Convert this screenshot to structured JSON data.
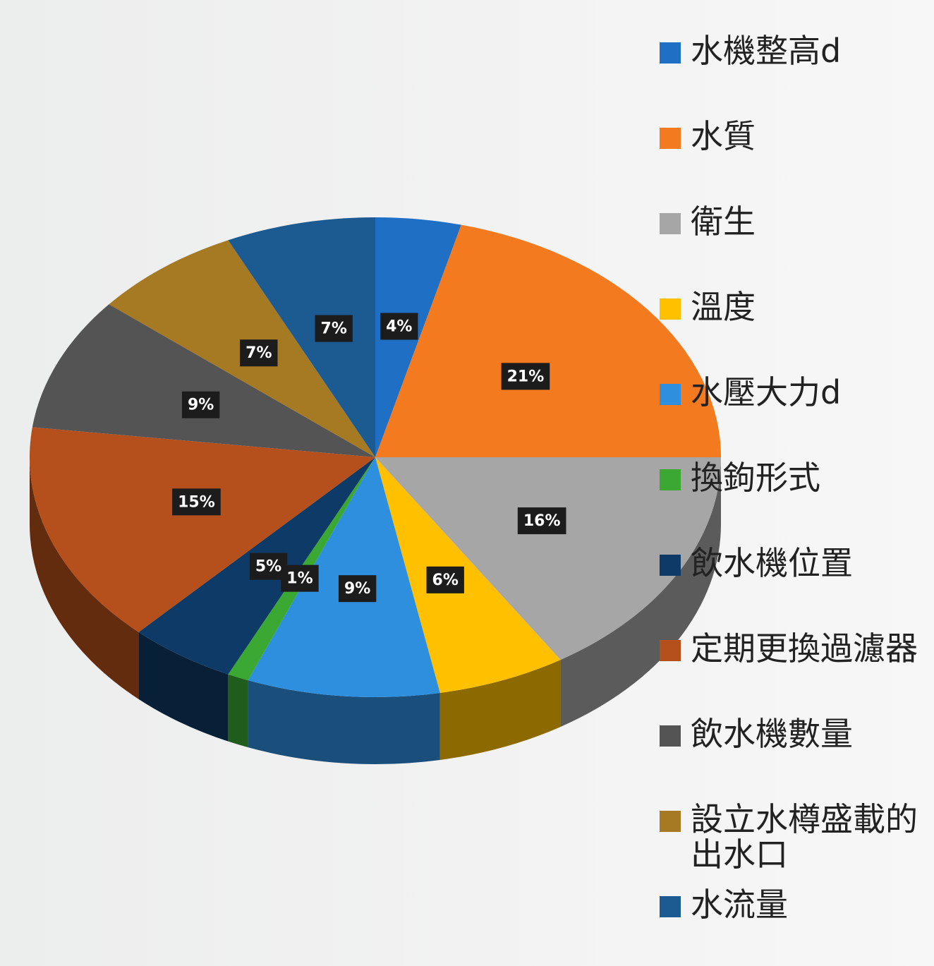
{
  "chart_data": {
    "type": "pie",
    "categories": [
      "水機整高d",
      "水質",
      "衛生",
      "溫度",
      "水壓大力d",
      "換鉤形式",
      "飲水機位置",
      "定期更換過濾器",
      "飲水機數量",
      "設立水樽盛載的出水口",
      "水流量"
    ],
    "values": [
      4,
      21,
      16,
      6,
      9,
      1,
      5,
      15,
      9,
      7,
      7
    ],
    "value_labels": [
      "4%",
      "21%",
      "16%",
      "6%",
      "9%",
      "1%",
      "5%",
      "15%",
      "9%",
      "7%",
      "7%"
    ],
    "colors": [
      "#1f6fc5",
      "#f47a20",
      "#a6a6a6",
      "#ffc000",
      "#2f8fdf",
      "#3aa832",
      "#0d3a66",
      "#b5501c",
      "#545454",
      "#a67923",
      "#1c5a92"
    ],
    "legend": "right"
  }
}
